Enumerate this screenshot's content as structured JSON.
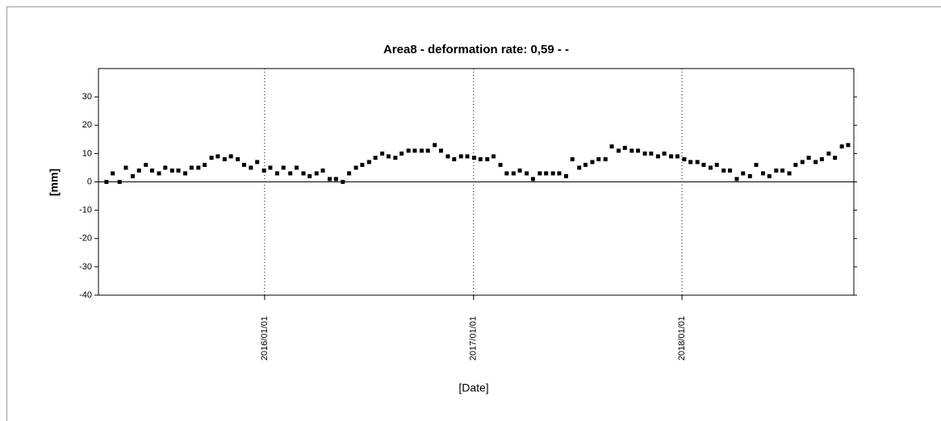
{
  "chart_data": {
    "type": "scatter",
    "title": "Area8 - deformation rate: 0,59 -  -",
    "x_label": "[Date]",
    "y_label": "[mm]",
    "xlim": [
      "2015/03/16",
      "2018/10/29"
    ],
    "xticks": [
      "2016/01/01",
      "2017/01/01",
      "2018/01/01"
    ],
    "ylim": [
      -40,
      40
    ],
    "yticks": [
      -40,
      -30,
      -20,
      -10,
      0,
      10,
      20,
      30
    ],
    "grid": true,
    "color": "#000000",
    "x": [
      "2015/03/30",
      "2015/04/10",
      "2015/04/22",
      "2015/05/03",
      "2015/05/15",
      "2015/05/26",
      "2015/06/07",
      "2015/06/18",
      "2015/06/30",
      "2015/07/11",
      "2015/07/23",
      "2015/08/03",
      "2015/08/15",
      "2015/08/26",
      "2015/09/07",
      "2015/09/18",
      "2015/09/30",
      "2015/10/11",
      "2015/10/23",
      "2015/11/03",
      "2015/11/15",
      "2015/11/26",
      "2015/12/08",
      "2015/12/19",
      "2015/12/31",
      "2016/01/11",
      "2016/01/23",
      "2016/02/03",
      "2016/02/15",
      "2016/02/26",
      "2016/03/09",
      "2016/03/20",
      "2016/04/01",
      "2016/04/12",
      "2016/04/24",
      "2016/05/05",
      "2016/05/17",
      "2016/05/28",
      "2016/06/09",
      "2016/06/20",
      "2016/07/02",
      "2016/07/13",
      "2016/07/25",
      "2016/08/05",
      "2016/08/17",
      "2016/08/28",
      "2016/09/09",
      "2016/09/20",
      "2016/10/02",
      "2016/10/13",
      "2016/10/25",
      "2016/11/05",
      "2016/11/17",
      "2016/11/28",
      "2016/12/10",
      "2016/12/21",
      "2017/01/02",
      "2017/01/13",
      "2017/01/25",
      "2017/02/05",
      "2017/02/17",
      "2017/02/28",
      "2017/03/12",
      "2017/03/23",
      "2017/04/04",
      "2017/04/15",
      "2017/04/27",
      "2017/05/08",
      "2017/05/20",
      "2017/05/31",
      "2017/06/12",
      "2017/06/23",
      "2017/07/05",
      "2017/07/16",
      "2017/07/28",
      "2017/08/08",
      "2017/08/20",
      "2017/08/31",
      "2017/09/12",
      "2017/09/23",
      "2017/10/05",
      "2017/10/16",
      "2017/10/28",
      "2017/11/08",
      "2017/11/20",
      "2017/12/01",
      "2017/12/13",
      "2017/12/24",
      "2018/01/05",
      "2018/01/16",
      "2018/01/28",
      "2018/02/08",
      "2018/02/20",
      "2018/03/03",
      "2018/03/15",
      "2018/03/26",
      "2018/04/07",
      "2018/04/18",
      "2018/04/30",
      "2018/05/11",
      "2018/05/23",
      "2018/06/03",
      "2018/06/15",
      "2018/06/26",
      "2018/07/08",
      "2018/07/19",
      "2018/07/31",
      "2018/08/11",
      "2018/08/23",
      "2018/09/03",
      "2018/09/15",
      "2018/09/26",
      "2018/10/08",
      "2018/10/19"
    ],
    "values": [
      0,
      3,
      0,
      5,
      2,
      4,
      6,
      4,
      3,
      5,
      4,
      4,
      3,
      5,
      5,
      6,
      8.5,
      9,
      8,
      9,
      8,
      6,
      5,
      7,
      4,
      5,
      3,
      5,
      3,
      5,
      3,
      2,
      3,
      4,
      1,
      1,
      0,
      3,
      5,
      6,
      7,
      8.5,
      10,
      9,
      8.5,
      10,
      11,
      11,
      11,
      11,
      13,
      11,
      9,
      8,
      9,
      9,
      8.5,
      8,
      8,
      9,
      6,
      3,
      3,
      4,
      3,
      1,
      3,
      3,
      3,
      3,
      2,
      8,
      5,
      6,
      7,
      8,
      8,
      12.5,
      11,
      12,
      11,
      11,
      10,
      10,
      9,
      10,
      9,
      9,
      8,
      7,
      7,
      6,
      5,
      6,
      4,
      4,
      1,
      3,
      2,
      6,
      3,
      2,
      4,
      4,
      3,
      6,
      7,
      8.5,
      7,
      8,
      10,
      8.5,
      12.5,
      13
    ]
  }
}
